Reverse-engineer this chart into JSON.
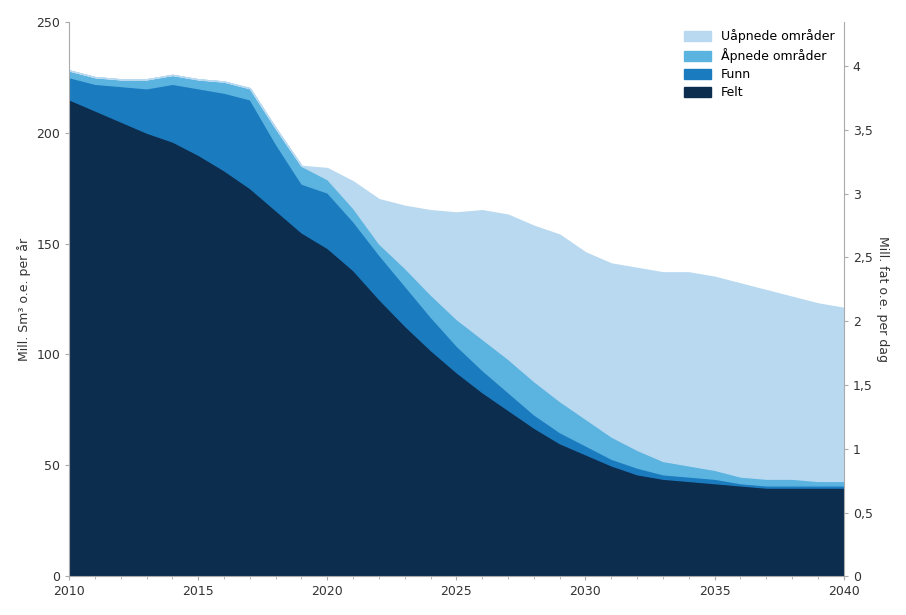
{
  "years": [
    2010,
    2011,
    2012,
    2013,
    2014,
    2015,
    2016,
    2017,
    2018,
    2019,
    2020,
    2021,
    2022,
    2023,
    2024,
    2025,
    2026,
    2027,
    2028,
    2029,
    2030,
    2031,
    2032,
    2033,
    2034,
    2035,
    2036,
    2037,
    2038,
    2039,
    2040
  ],
  "felt": [
    215,
    210,
    205,
    200,
    196,
    190,
    183,
    175,
    165,
    155,
    148,
    138,
    125,
    113,
    102,
    92,
    83,
    75,
    67,
    60,
    55,
    50,
    46,
    44,
    43,
    42,
    41,
    40,
    40,
    40,
    40
  ],
  "funn": [
    10,
    12,
    16,
    20,
    26,
    30,
    35,
    40,
    30,
    22,
    25,
    22,
    20,
    18,
    15,
    12,
    10,
    8,
    6,
    5,
    4,
    3,
    3,
    2,
    2,
    2,
    1,
    1,
    1,
    1,
    1
  ],
  "apnede": [
    3,
    3,
    3,
    4,
    4,
    4,
    5,
    5,
    7,
    8,
    6,
    6,
    5,
    8,
    10,
    12,
    14,
    15,
    15,
    14,
    12,
    10,
    8,
    6,
    5,
    4,
    3,
    3,
    3,
    2,
    2
  ],
  "uapnede": [
    0,
    0,
    0,
    0,
    0,
    0,
    0,
    0,
    0,
    0,
    5,
    12,
    20,
    28,
    38,
    48,
    58,
    65,
    70,
    75,
    75,
    78,
    82,
    85,
    87,
    87,
    87,
    85,
    82,
    80,
    78
  ],
  "color_felt": "#0d2d4e",
  "color_funn": "#1b7bbf",
  "color_apnede": "#5bb3e0",
  "color_uapnede": "#b8d9f0",
  "ylabel_left": "Mill. Sm³ o.e. per år",
  "ylabel_right": "Mill. fat o.e. per dag",
  "ylim_left": [
    0,
    250
  ],
  "ylim_right": [
    0,
    4.347826
  ],
  "legend_labels": [
    "Uåpnede områder",
    "Åpnede områder",
    "Funn",
    "Felt"
  ],
  "xticks": [
    2010,
    2015,
    2020,
    2025,
    2030,
    2035,
    2040
  ],
  "yticks_left": [
    0,
    50,
    100,
    150,
    200,
    250
  ],
  "yticks_right": [
    0,
    0.5,
    1.0,
    1.5,
    2.0,
    2.5,
    3.0,
    3.5,
    4.0
  ],
  "ytick_right_labels": [
    "0",
    "0,5",
    "1",
    "1,5",
    "2",
    "2,5",
    "3",
    "3,5",
    "4"
  ]
}
